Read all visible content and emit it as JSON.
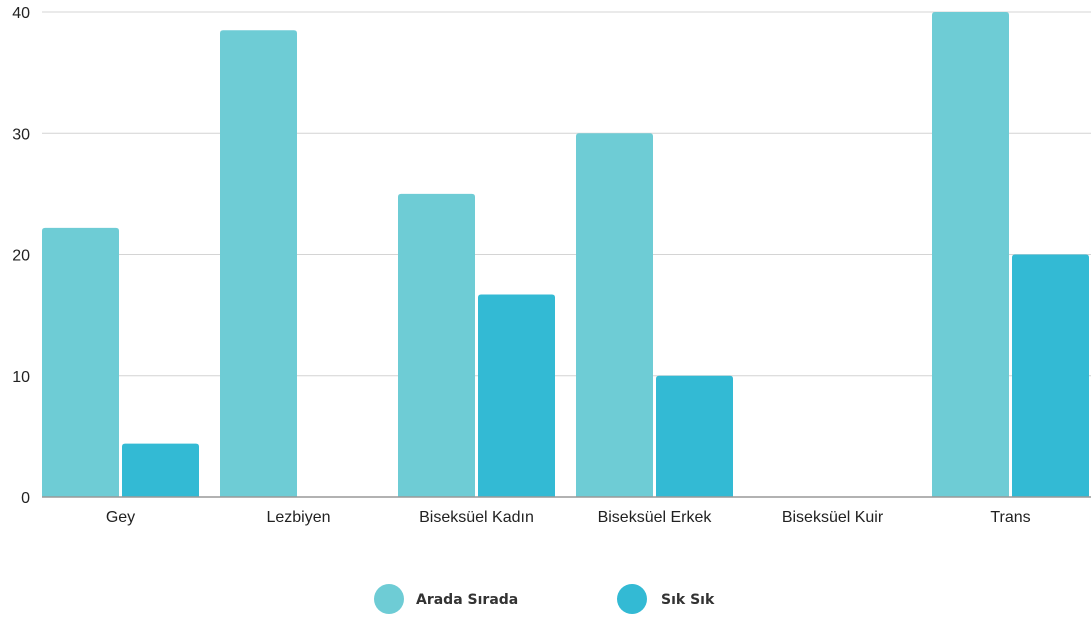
{
  "chart_data": {
    "type": "bar",
    "title": "",
    "xlabel": "",
    "ylabel": "",
    "ylim": [
      0,
      40
    ],
    "yticks": [
      0,
      10,
      20,
      30,
      40
    ],
    "grid": true,
    "legend_position": "bottom-center",
    "categories": [
      "Gey",
      "Lezbiyen",
      "Biseksüel Kadın",
      "Biseksüel Erkek",
      "Biseksüel Kuir",
      "Trans"
    ],
    "series": [
      {
        "name": "Arada Sırada",
        "color": "#6ECCD5",
        "values": [
          22.2,
          38.5,
          25,
          30,
          0,
          40
        ]
      },
      {
        "name": "Sık Sık",
        "color": "#33BAD4",
        "values": [
          4.4,
          0,
          16.7,
          10,
          0,
          20
        ]
      }
    ]
  }
}
